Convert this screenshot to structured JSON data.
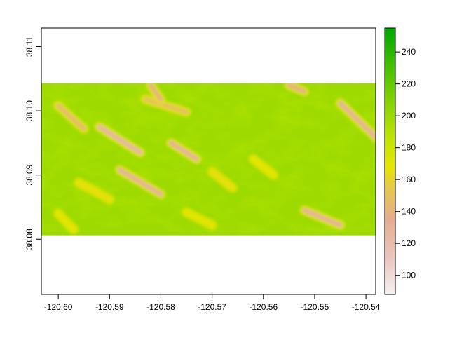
{
  "chart_data": {
    "type": "heatmap",
    "title": "",
    "xlabel": "",
    "ylabel": "",
    "xlim": [
      -120.6033,
      -120.5381
    ],
    "ylim": [
      38.0714,
      38.1129
    ],
    "raster_extent": {
      "x": [
        -120.6033,
        -120.5381
      ],
      "y": [
        38.0806,
        38.1043
      ]
    },
    "x_ticks": [
      {
        "value": -120.6,
        "label": "-120.60"
      },
      {
        "value": -120.59,
        "label": "-120.59"
      },
      {
        "value": -120.58,
        "label": "-120.58"
      },
      {
        "value": -120.57,
        "label": "-120.57"
      },
      {
        "value": -120.56,
        "label": "-120.56"
      },
      {
        "value": -120.55,
        "label": "-120.55"
      },
      {
        "value": -120.54,
        "label": "-120.54"
      }
    ],
    "y_ticks": [
      {
        "value": 38.08,
        "label": "38.08"
      },
      {
        "value": 38.09,
        "label": "38.09"
      },
      {
        "value": 38.1,
        "label": "38.10"
      },
      {
        "value": 38.11,
        "label": "38.11"
      }
    ],
    "legend": {
      "position": "right",
      "range": [
        88,
        255
      ],
      "ticks": [
        {
          "value": 100,
          "label": "100"
        },
        {
          "value": 120,
          "label": "120"
        },
        {
          "value": 140,
          "label": "140"
        },
        {
          "value": 160,
          "label": "160"
        },
        {
          "value": 180,
          "label": "180"
        },
        {
          "value": 200,
          "label": "200"
        },
        {
          "value": 220,
          "label": "220"
        },
        {
          "value": 240,
          "label": "240"
        }
      ],
      "colormap": [
        {
          "value": 88,
          "color": "#f2f2f2"
        },
        {
          "value": 110,
          "color": "#ebc6c0"
        },
        {
          "value": 135,
          "color": "#e5ad8f"
        },
        {
          "value": 155,
          "color": "#e6c84a"
        },
        {
          "value": 168,
          "color": "#e6e600"
        },
        {
          "value": 185,
          "color": "#c2e400"
        },
        {
          "value": 205,
          "color": "#90d600"
        },
        {
          "value": 228,
          "color": "#4cc200"
        },
        {
          "value": 255,
          "color": "#00a600"
        }
      ]
    },
    "grid": false,
    "values_summary": {
      "min": 110,
      "max": 250,
      "typical": 200
    },
    "ridges": [
      {
        "x": [
          -120.592,
          -120.584
        ],
        "y": [
          38.0975,
          38.0935
        ],
        "value": 125
      },
      {
        "x": [
          -120.6,
          -120.595
        ],
        "y": [
          38.1008,
          38.0972
        ],
        "value": 145
      },
      {
        "x": [
          -120.588,
          -120.58
        ],
        "y": [
          38.0908,
          38.087
        ],
        "value": 130
      },
      {
        "x": [
          -120.578,
          -120.573
        ],
        "y": [
          38.095,
          38.0925
        ],
        "value": 130
      },
      {
        "x": [
          -120.583,
          -120.575
        ],
        "y": [
          38.1018,
          38.0998
        ],
        "value": 150
      },
      {
        "x": [
          -120.545,
          -120.538
        ],
        "y": [
          38.1012,
          38.0958
        ],
        "value": 130
      },
      {
        "x": [
          -120.552,
          -120.545
        ],
        "y": [
          38.0845,
          38.0822
        ],
        "value": 130
      },
      {
        "x": [
          -120.582,
          -120.58
        ],
        "y": [
          38.104,
          38.1018
        ],
        "value": 140
      },
      {
        "x": [
          -120.555,
          -120.552
        ],
        "y": [
          38.104,
          38.103
        ],
        "value": 140
      },
      {
        "x": [
          -120.596,
          -120.59
        ],
        "y": [
          38.0888,
          38.0862
        ],
        "value": 165
      },
      {
        "x": [
          -120.57,
          -120.566
        ],
        "y": [
          38.0905,
          38.088
        ],
        "value": 165
      },
      {
        "x": [
          -120.562,
          -120.558
        ],
        "y": [
          38.0925,
          38.09
        ],
        "value": 170
      },
      {
        "x": [
          -120.6,
          -120.597
        ],
        "y": [
          38.084,
          38.0815
        ],
        "value": 170
      },
      {
        "x": [
          -120.575,
          -120.57
        ],
        "y": [
          38.0842,
          38.0822
        ],
        "value": 170
      }
    ]
  }
}
